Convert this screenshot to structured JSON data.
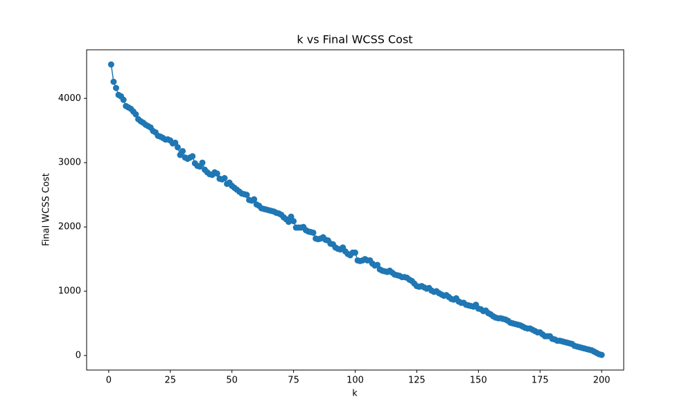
{
  "chart_data": {
    "type": "line",
    "title": "k vs Final WCSS Cost",
    "xlabel": "k",
    "ylabel": "Final WCSS Cost",
    "color": "#1f77b4",
    "markers": true,
    "grid": false,
    "xlim": [
      -8.95,
      208.95
    ],
    "xticks": [
      0,
      25,
      50,
      75,
      100,
      125,
      150,
      175,
      200
    ],
    "ylim": [
      -226,
      4756
    ],
    "yticks": [
      0,
      1000,
      2000,
      3000,
      4000
    ],
    "x": [
      1,
      2,
      3,
      4,
      5,
      6,
      7,
      8,
      9,
      10,
      11,
      12,
      13,
      14,
      15,
      16,
      17,
      18,
      19,
      20,
      21,
      22,
      23,
      24,
      25,
      26,
      27,
      28,
      29,
      30,
      31,
      32,
      33,
      34,
      35,
      36,
      37,
      38,
      39,
      40,
      41,
      42,
      43,
      44,
      45,
      46,
      47,
      48,
      49,
      50,
      51,
      52,
      53,
      54,
      55,
      56,
      57,
      58,
      59,
      60,
      61,
      62,
      63,
      64,
      65,
      66,
      67,
      68,
      69,
      70,
      71,
      72,
      73,
      74,
      75,
      76,
      77,
      78,
      79,
      80,
      81,
      82,
      83,
      84,
      85,
      86,
      87,
      88,
      89,
      90,
      91,
      92,
      93,
      94,
      95,
      96,
      97,
      98,
      99,
      100,
      101,
      102,
      103,
      104,
      105,
      106,
      107,
      108,
      109,
      110,
      111,
      112,
      113,
      114,
      115,
      116,
      117,
      118,
      119,
      120,
      121,
      122,
      123,
      124,
      125,
      126,
      127,
      128,
      129,
      130,
      131,
      132,
      133,
      134,
      135,
      136,
      137,
      138,
      139,
      140,
      141,
      142,
      143,
      144,
      145,
      146,
      147,
      148,
      149,
      150,
      151,
      152,
      153,
      154,
      155,
      156,
      157,
      158,
      159,
      160,
      161,
      162,
      163,
      164,
      165,
      166,
      167,
      168,
      169,
      170,
      171,
      172,
      173,
      174,
      175,
      176,
      177,
      178,
      179,
      180,
      181,
      182,
      183,
      184,
      185,
      186,
      187,
      188,
      189,
      190,
      191,
      192,
      193,
      194,
      195,
      196,
      197,
      198,
      199,
      200
    ],
    "values": [
      4528,
      4259,
      4162,
      4054,
      4032,
      3978,
      3881,
      3860,
      3838,
      3795,
      3752,
      3676,
      3644,
      3622,
      3590,
      3569,
      3547,
      3493,
      3472,
      3418,
      3405,
      3385,
      3360,
      3362,
      3345,
      3300,
      3310,
      3240,
      3120,
      3180,
      3080,
      3060,
      3080,
      3100,
      2990,
      2950,
      2940,
      3000,
      2890,
      2850,
      2820,
      2810,
      2850,
      2830,
      2750,
      2740,
      2760,
      2670,
      2690,
      2640,
      2610,
      2580,
      2550,
      2520,
      2510,
      2500,
      2420,
      2410,
      2430,
      2350,
      2330,
      2290,
      2280,
      2270,
      2260,
      2250,
      2240,
      2220,
      2210,
      2190,
      2150,
      2120,
      2080,
      2160,
      2090,
      1990,
      1990,
      1990,
      2000,
      1950,
      1930,
      1920,
      1910,
      1820,
      1810,
      1820,
      1840,
      1800,
      1790,
      1740,
      1730,
      1680,
      1660,
      1650,
      1680,
      1620,
      1580,
      1560,
      1600,
      1600,
      1480,
      1470,
      1480,
      1500,
      1480,
      1480,
      1430,
      1400,
      1410,
      1340,
      1320,
      1310,
      1300,
      1320,
      1290,
      1260,
      1250,
      1240,
      1220,
      1220,
      1210,
      1180,
      1160,
      1120,
      1080,
      1070,
      1080,
      1060,
      1040,
      1050,
      1010,
      990,
      1000,
      970,
      950,
      930,
      940,
      910,
      880,
      870,
      890,
      840,
      820,
      820,
      790,
      780,
      770,
      760,
      790,
      730,
      720,
      690,
      700,
      660,
      640,
      610,
      590,
      580,
      580,
      570,
      560,
      540,
      510,
      500,
      490,
      480,
      470,
      450,
      430,
      420,
      420,
      400,
      380,
      360,
      360,
      330,
      300,
      300,
      300,
      260,
      250,
      230,
      230,
      220,
      210,
      200,
      190,
      180,
      150,
      140,
      130,
      120,
      110,
      100,
      90,
      80,
      60,
      40,
      20,
      10
    ]
  }
}
